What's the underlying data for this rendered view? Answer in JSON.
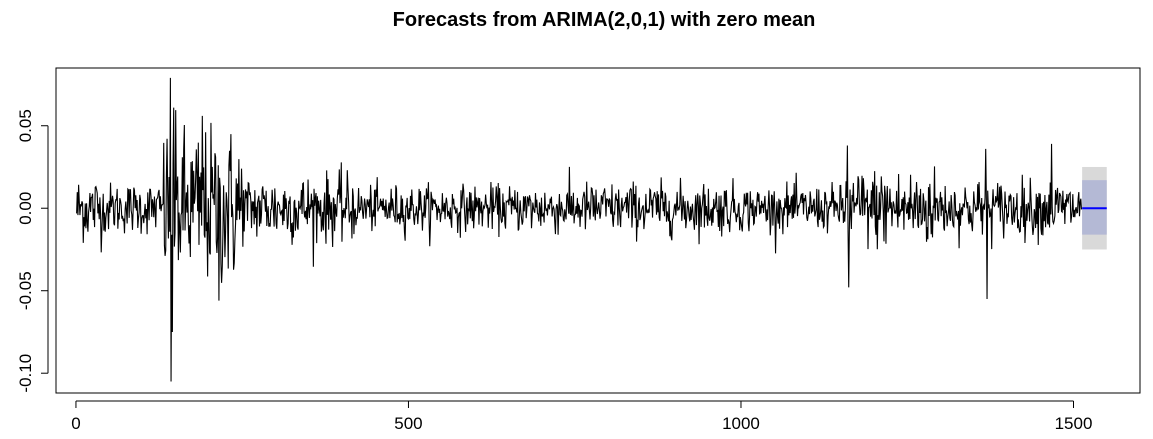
{
  "chart_data": {
    "type": "line",
    "title": "Forecasts from ARIMA(2,0,1) with zero mean",
    "xlabel": "",
    "ylabel": "",
    "xlim": [
      -30,
      1600
    ],
    "ylim": [
      -0.112,
      0.085
    ],
    "x_ticks": [
      0,
      500,
      1000,
      1500
    ],
    "y_ticks": [
      -0.1,
      -0.05,
      0.0,
      0.05
    ],
    "x_tick_labels": [
      "0",
      "500",
      "1000",
      "1500"
    ],
    "y_tick_labels": [
      "-0.10",
      "-0.05",
      "0.00",
      "0.05"
    ],
    "grid": false,
    "legend": "none",
    "series": [
      {
        "kind": "observed",
        "color": "#000000",
        "n_points": 1512,
        "x_range": [
          1,
          1512
        ],
        "values_description_free": true,
        "volatility_profile": [
          {
            "x_from": 1,
            "x_to": 40,
            "amplitude": 0.012
          },
          {
            "x_from": 40,
            "x_to": 130,
            "amplitude": 0.009
          },
          {
            "x_from": 130,
            "x_to": 250,
            "amplitude": 0.028
          },
          {
            "x_from": 250,
            "x_to": 420,
            "amplitude": 0.012
          },
          {
            "x_from": 420,
            "x_to": 680,
            "amplitude": 0.008
          },
          {
            "x_from": 680,
            "x_to": 1000,
            "amplitude": 0.009
          },
          {
            "x_from": 1000,
            "x_to": 1150,
            "amplitude": 0.008
          },
          {
            "x_from": 1150,
            "x_to": 1300,
            "amplitude": 0.014
          },
          {
            "x_from": 1300,
            "x_to": 1512,
            "amplitude": 0.01
          }
        ],
        "notable_points": [
          {
            "x": 142,
            "y": 0.079
          },
          {
            "x": 143,
            "y": -0.105
          },
          {
            "x": 145,
            "y": -0.075
          },
          {
            "x": 147,
            "y": 0.061
          },
          {
            "x": 190,
            "y": 0.056
          },
          {
            "x": 215,
            "y": -0.056
          },
          {
            "x": 1160,
            "y": 0.038
          },
          {
            "x": 1162,
            "y": -0.048
          },
          {
            "x": 1368,
            "y": 0.036
          },
          {
            "x": 1370,
            "y": -0.055
          },
          {
            "x": 1467,
            "y": 0.039
          }
        ]
      },
      {
        "kind": "forecast_mean",
        "color": "#0000ff",
        "x": [
          1513,
          1550
        ],
        "y": [
          0.0,
          0.0
        ]
      }
    ],
    "intervals": [
      {
        "level": 95,
        "color": "#d9d9d9",
        "x_from": 1513,
        "x_to": 1550,
        "lower": -0.025,
        "upper": 0.025
      },
      {
        "level": 80,
        "color": "#b4b9d5",
        "x_from": 1513,
        "x_to": 1550,
        "lower": -0.016,
        "upper": 0.017
      }
    ]
  }
}
